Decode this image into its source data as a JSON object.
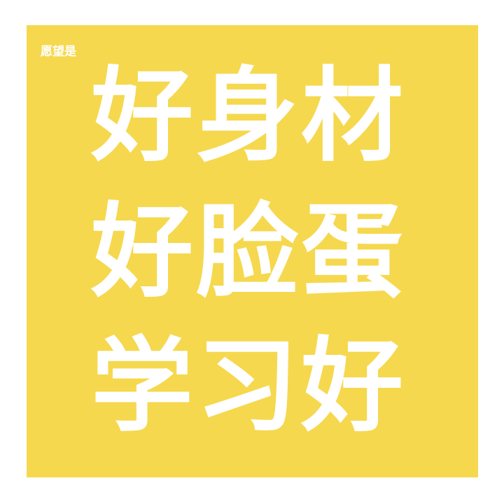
{
  "card": {
    "background_color": "#f5d84e",
    "text_color": "#ffffff",
    "prefix": "愿望是",
    "lines": [
      "好身材",
      "好脸蛋",
      "学习好"
    ]
  }
}
